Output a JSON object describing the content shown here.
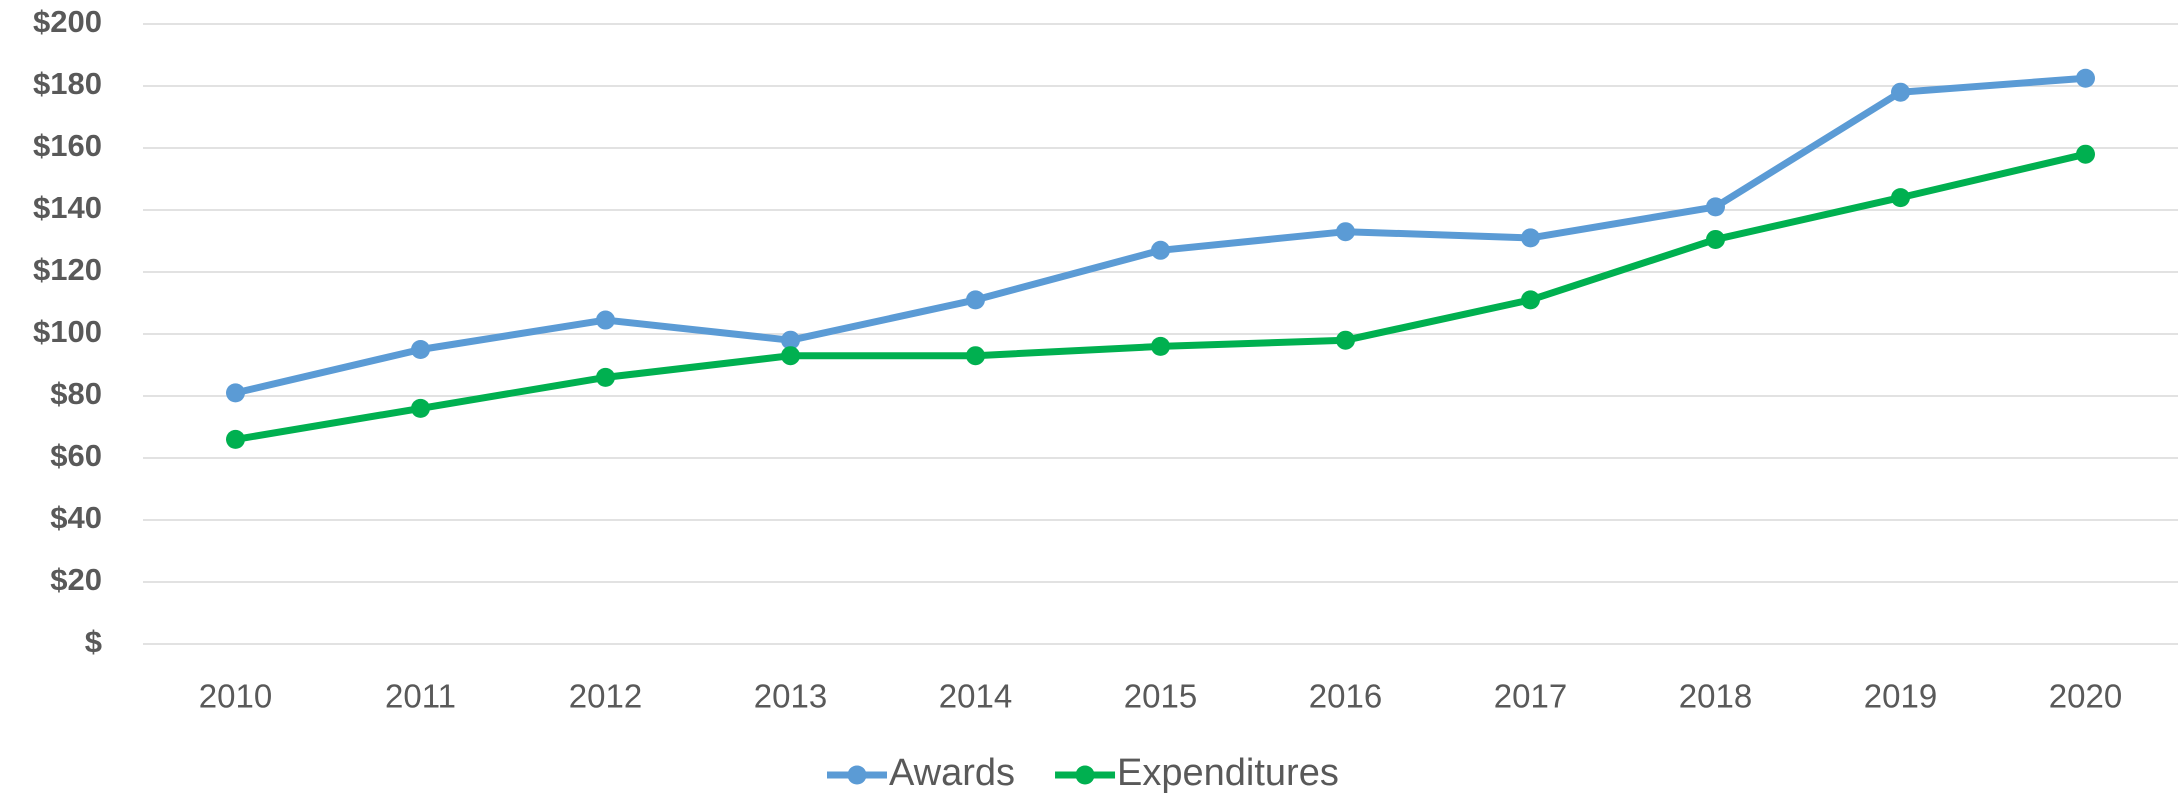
{
  "chart_data": {
    "type": "line",
    "categories": [
      "2010",
      "2011",
      "2012",
      "2013",
      "2014",
      "2015",
      "2016",
      "2017",
      "2018",
      "2019",
      "2020"
    ],
    "series": [
      {
        "name": "Awards",
        "color": "#5b9bd5",
        "values": [
          81,
          95,
          104.5,
          98,
          111,
          127,
          133,
          131,
          141,
          178,
          182.5
        ]
      },
      {
        "name": "Expenditures",
        "color": "#00b050",
        "values": [
          66,
          76,
          86,
          93,
          93,
          96,
          98,
          111,
          130.5,
          144,
          158
        ]
      }
    ],
    "ylim": [
      0,
      200
    ],
    "yticks": [
      {
        "value": 0,
        "label": "$"
      },
      {
        "value": 20,
        "label": "$20"
      },
      {
        "value": 40,
        "label": "$40"
      },
      {
        "value": 60,
        "label": "$60"
      },
      {
        "value": 80,
        "label": "$80"
      },
      {
        "value": 100,
        "label": "$100"
      },
      {
        "value": 120,
        "label": "$120"
      },
      {
        "value": 140,
        "label": "$140"
      },
      {
        "value": 160,
        "label": "$160"
      },
      {
        "value": 180,
        "label": "$180"
      },
      {
        "value": 200,
        "label": "$200"
      }
    ],
    "grid": true,
    "legend": "bottom"
  }
}
